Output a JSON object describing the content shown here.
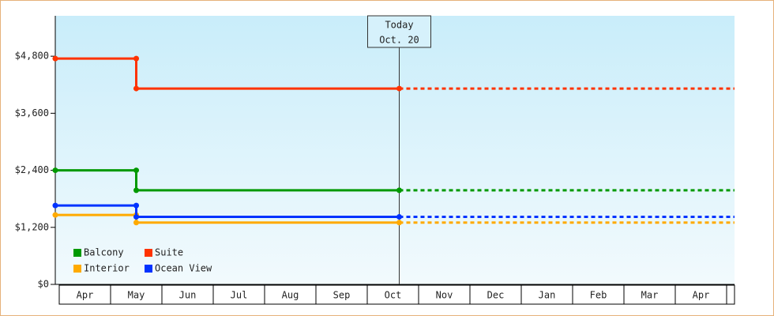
{
  "chart_data": {
    "type": "line",
    "categories": [
      "Apr",
      "May",
      "Jun",
      "Jul",
      "Aug",
      "Sep",
      "Oct",
      "Nov",
      "Dec",
      "Jan",
      "Feb",
      "Mar",
      "Apr"
    ],
    "series": [
      {
        "name": "Balcony",
        "color": "#009900",
        "values": [
          2400,
          1980,
          1980,
          1980,
          1980,
          1980,
          1980,
          null,
          null,
          null,
          null,
          null,
          null
        ]
      },
      {
        "name": "Suite",
        "color": "#ff3300",
        "values": [
          4750,
          4120,
          4120,
          4120,
          4120,
          4120,
          4120,
          null,
          null,
          null,
          null,
          null,
          null
        ]
      },
      {
        "name": "Interior",
        "color": "#ffaa00",
        "values": [
          1460,
          1300,
          1300,
          1300,
          1300,
          1300,
          1300,
          null,
          null,
          null,
          null,
          null,
          null
        ]
      },
      {
        "name": "Ocean View",
        "color": "#0033ff",
        "values": [
          1660,
          1420,
          1420,
          1420,
          1420,
          1420,
          1420,
          null,
          null,
          null,
          null,
          null,
          null
        ]
      }
    ],
    "ylim": [
      0,
      5650
    ],
    "yticks": [
      {
        "value": 0,
        "label": "$0"
      },
      {
        "value": 1200,
        "label": "$1,200"
      },
      {
        "value": 2400,
        "label": "$2,400"
      },
      {
        "value": 3600,
        "label": "$3,600"
      },
      {
        "value": 4800,
        "label": "$4,800"
      }
    ],
    "annotation": [
      "Today",
      "Oct. 20"
    ]
  }
}
